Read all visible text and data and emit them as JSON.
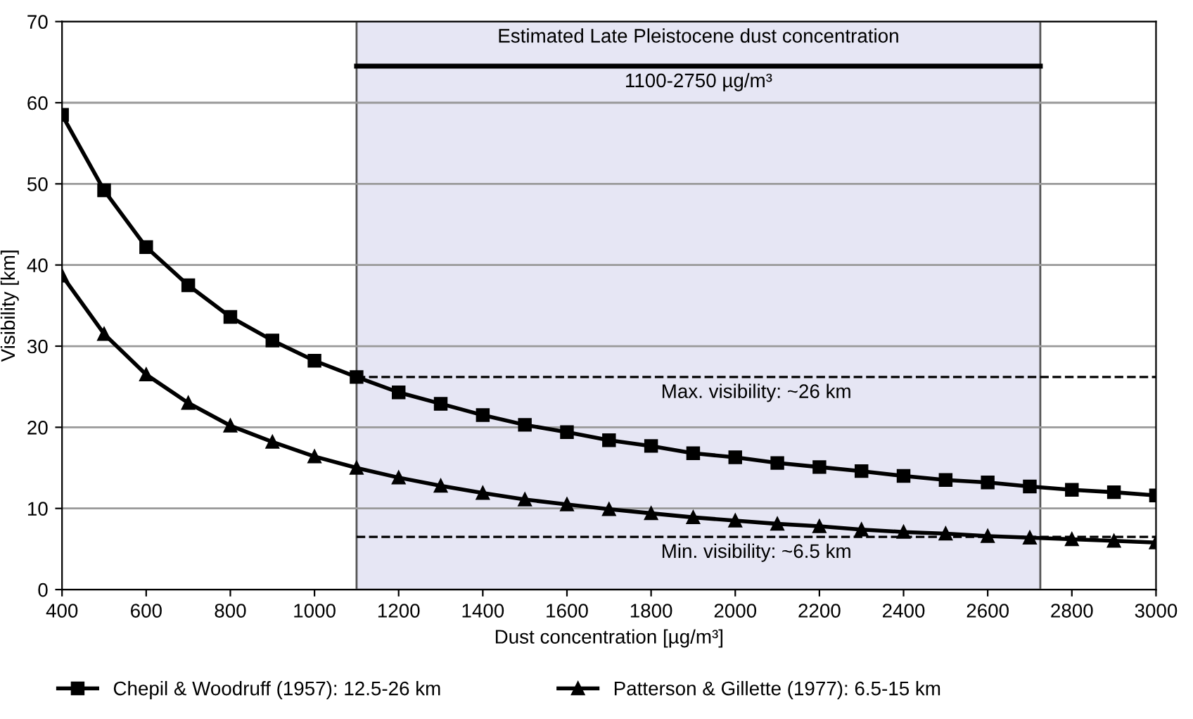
{
  "chart_data": {
    "type": "line",
    "xlabel": "Dust concentration [µg/m³]",
    "ylabel": "Visibility [km]",
    "x": [
      400,
      500,
      600,
      700,
      800,
      900,
      1000,
      1100,
      1200,
      1300,
      1400,
      1500,
      1600,
      1700,
      1800,
      1900,
      2000,
      2100,
      2200,
      2300,
      2400,
      2500,
      2600,
      2700,
      2800,
      2900,
      3000
    ],
    "series": [
      {
        "name": "Chepil & Woodruff (1957): 12.5-26 km",
        "color": "#000000",
        "marker": "square",
        "values": [
          58.5,
          49.2,
          42.2,
          37.5,
          33.6,
          30.7,
          28.2,
          26.2,
          24.3,
          22.9,
          21.5,
          20.3,
          19.4,
          18.4,
          17.7,
          16.8,
          16.3,
          15.6,
          15.1,
          14.6,
          14.0,
          13.5,
          13.2,
          12.7,
          12.3,
          12.0,
          11.6
        ]
      },
      {
        "name": "Patterson & Gillette (1977): 6.5-15 km",
        "color": "#000000",
        "marker": "triangle",
        "values": [
          38.7,
          31.5,
          26.5,
          23.0,
          20.2,
          18.2,
          16.4,
          15.0,
          13.8,
          12.8,
          11.9,
          11.1,
          10.5,
          9.9,
          9.4,
          8.9,
          8.5,
          8.1,
          7.8,
          7.4,
          7.1,
          6.9,
          6.6,
          6.4,
          6.2,
          6.0,
          5.8
        ]
      }
    ],
    "xlim": [
      400,
      3000
    ],
    "ylim": [
      0,
      70
    ],
    "xticks": [
      400,
      600,
      800,
      1000,
      1200,
      1400,
      1600,
      1800,
      2000,
      2200,
      2400,
      2600,
      2800,
      3000
    ],
    "yticks": [
      0,
      10,
      20,
      30,
      40,
      50,
      60,
      70
    ],
    "bands": [
      {
        "axis": "x",
        "from": 1100,
        "to": 2725,
        "label": "Estimated Late Pleistocene dust concentration",
        "color": "#e6e6f4"
      }
    ],
    "ref_lines": [
      {
        "axis": "y",
        "value": 64.5,
        "label": "1100-2750 µg/m³",
        "color": "#000000",
        "line_style": "solid"
      },
      {
        "axis": "y",
        "value": 26.2,
        "label": "Max. visibility: ~26 km",
        "color": "#000000",
        "line_style": "dashed"
      },
      {
        "axis": "y",
        "value": 6.5,
        "label": "Min. visibility: ~6.5 km",
        "color": "#000000",
        "line_style": "dashed"
      }
    ],
    "grid": "y",
    "legend": "bottom",
    "line_style": "solid"
  }
}
